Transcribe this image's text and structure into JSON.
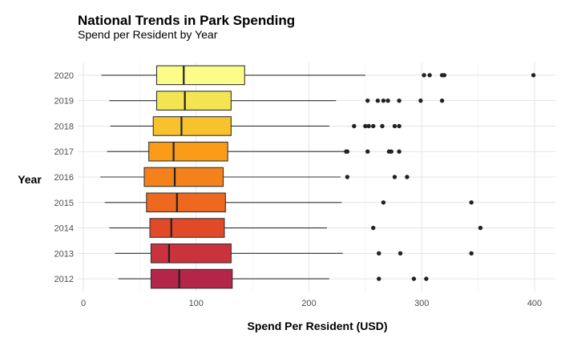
{
  "chart_data": {
    "type": "boxplot",
    "orientation": "horizontal",
    "title": "National Trends in Park Spending",
    "subtitle": "Spend per Resident by Year",
    "xlabel": "Spend Per Resident (USD)",
    "ylabel": "Year",
    "xlim": [
      0,
      410
    ],
    "xticks": [
      0,
      100,
      200,
      300,
      400
    ],
    "grid": true,
    "legend": "none",
    "categories": [
      "2012",
      "2013",
      "2014",
      "2015",
      "2016",
      "2017",
      "2018",
      "2019",
      "2020"
    ],
    "boxes": [
      {
        "year": "2012",
        "whisker_low": 31,
        "q1": 60,
        "median": 85,
        "q3": 132,
        "whisker_high": 218,
        "outliers": [
          262,
          293,
          304
        ],
        "color": "#B5254A"
      },
      {
        "year": "2013",
        "whisker_low": 28,
        "q1": 60,
        "median": 76,
        "q3": 131,
        "whisker_high": 230,
        "outliers": [
          262,
          281,
          344
        ],
        "color": "#CB333C"
      },
      {
        "year": "2014",
        "whisker_low": 23,
        "q1": 59,
        "median": 78,
        "q3": 125,
        "whisker_high": 216,
        "outliers": [
          257,
          352
        ],
        "color": "#E04A29"
      },
      {
        "year": "2015",
        "whisker_low": 19,
        "q1": 56,
        "median": 83,
        "q3": 126,
        "whisker_high": 229,
        "outliers": [
          266,
          344
        ],
        "color": "#EE6820"
      },
      {
        "year": "2016",
        "whisker_low": 15,
        "q1": 54,
        "median": 81,
        "q3": 124,
        "whisker_high": 228,
        "outliers": [
          234,
          276,
          287
        ],
        "color": "#F5811B"
      },
      {
        "year": "2017",
        "whisker_low": 21,
        "q1": 58,
        "median": 80,
        "q3": 128,
        "whisker_high": 232,
        "outliers": [
          233,
          234,
          252,
          271,
          273,
          280
        ],
        "color": "#FA9B17"
      },
      {
        "year": "2018",
        "whisker_low": 24,
        "q1": 62,
        "median": 87,
        "q3": 131,
        "whisker_high": 218,
        "outliers": [
          240,
          250,
          253,
          257,
          265,
          276,
          280
        ],
        "color": "#F7C22E"
      },
      {
        "year": "2019",
        "whisker_low": 23,
        "q1": 65,
        "median": 90,
        "q3": 131,
        "whisker_high": 224,
        "outliers": [
          252,
          261,
          266,
          270,
          280,
          299,
          318
        ],
        "color": "#F3E552"
      },
      {
        "year": "2020",
        "whisker_low": 16,
        "q1": 65,
        "median": 89,
        "q3": 143,
        "whisker_high": 250,
        "outliers": [
          302,
          307,
          318,
          320,
          399
        ],
        "color": "#FCFC88"
      }
    ]
  }
}
